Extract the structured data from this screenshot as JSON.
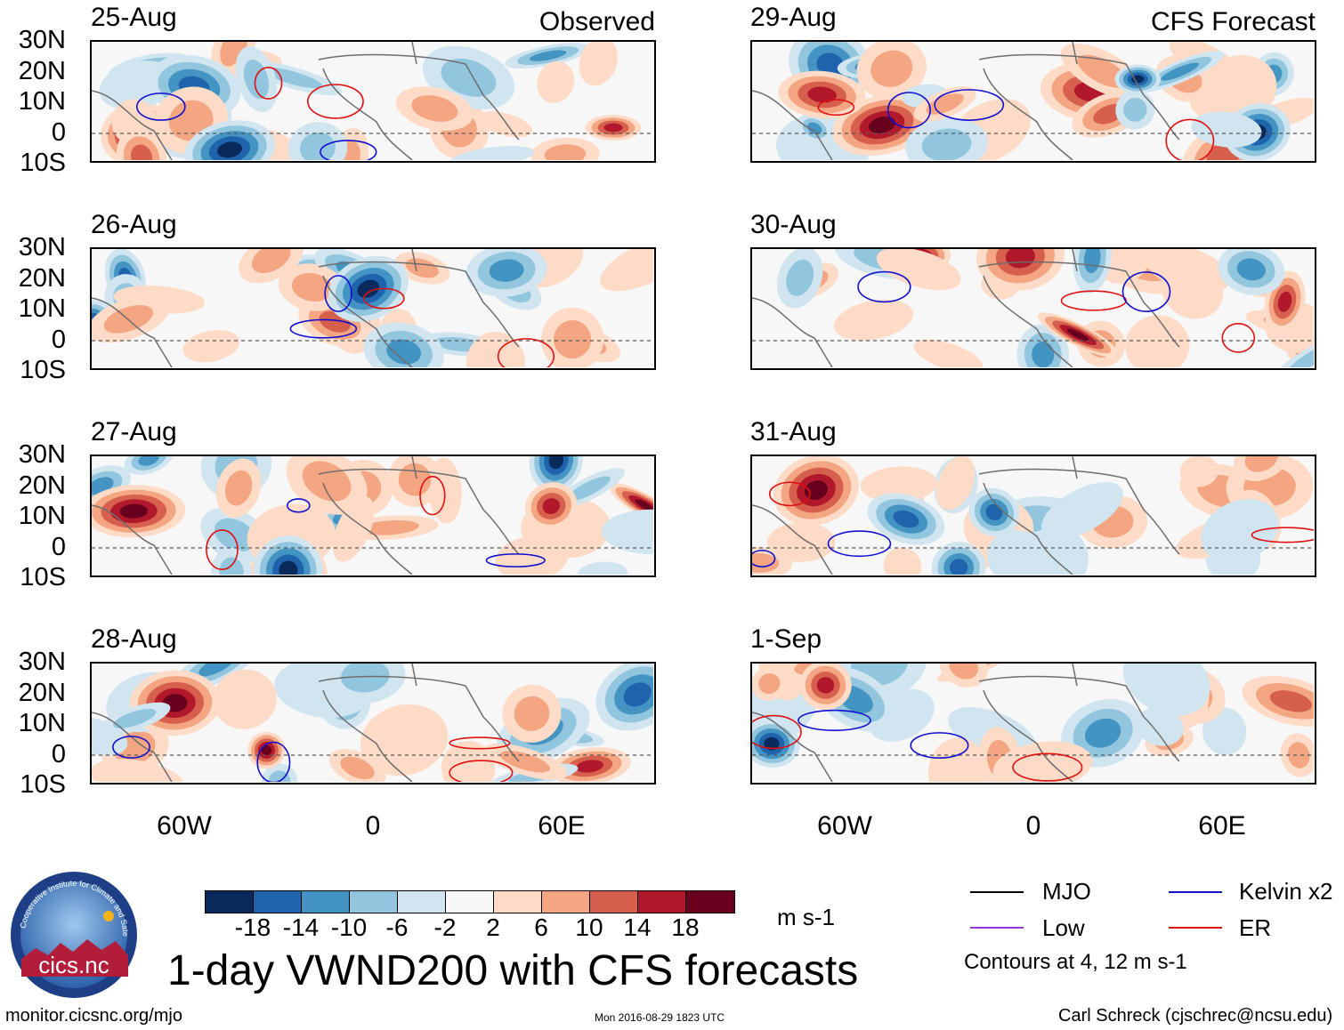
{
  "headings": {
    "observed": "Observed",
    "forecast": "CFS Forecast"
  },
  "panels": [
    {
      "date": "25-Aug",
      "column": "observed"
    },
    {
      "date": "26-Aug",
      "column": "observed"
    },
    {
      "date": "27-Aug",
      "column": "observed"
    },
    {
      "date": "28-Aug",
      "column": "observed"
    },
    {
      "date": "29-Aug",
      "column": "forecast"
    },
    {
      "date": "30-Aug",
      "column": "forecast"
    },
    {
      "date": "31-Aug",
      "column": "forecast"
    },
    {
      "date": "1-Sep",
      "column": "forecast"
    }
  ],
  "lat_labels": [
    "30N",
    "20N",
    "10N",
    "0",
    "10S"
  ],
  "lon_labels": [
    "60W",
    "0",
    "60E"
  ],
  "colorbar": {
    "colors": [
      "#0a2a5c",
      "#1f63ad",
      "#4393c3",
      "#92c5de",
      "#d1e5f0",
      "#f7f7f7",
      "#fddbc7",
      "#f4a582",
      "#d6604d",
      "#b2182b",
      "#67001f"
    ],
    "ticks": [
      "-18",
      "-14",
      "-10",
      "-6",
      "-2",
      "2",
      "6",
      "10",
      "14",
      "18"
    ],
    "units": "m s-1"
  },
  "title": "1-day VWND200 with CFS forecasts",
  "legend": [
    {
      "label": "MJO",
      "color": "#000000"
    },
    {
      "label": "Kelvin x2",
      "color": "#1010d0"
    },
    {
      "label": "Low",
      "color": "#9933dd"
    },
    {
      "label": "ER",
      "color": "#e01010"
    }
  ],
  "contour_note": "Contours at 4, 12 m s-1",
  "logo_text": "cics.nc",
  "logo_ring_text": "Cooperative Institute for Climate and Satellites",
  "footer": {
    "url": "monitor.cicsnc.org/mjo",
    "timestamp": "Mon 2016-08-29 1823 UTC",
    "author": "Carl Schreck (cjschrec@ncsu.edu)"
  }
}
